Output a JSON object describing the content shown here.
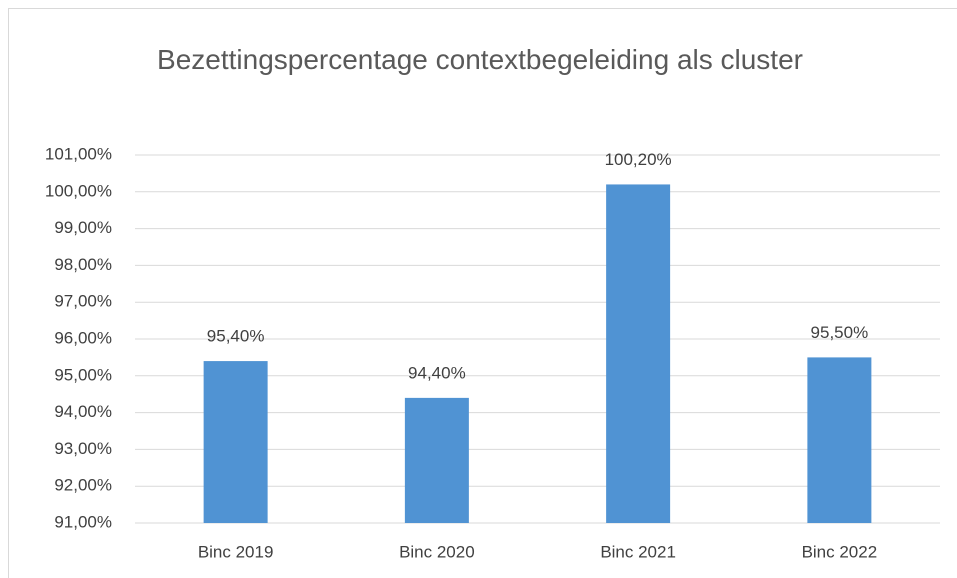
{
  "chart_data": {
    "type": "bar",
    "title": "Bezettingspercentage contextbegeleiding als cluster",
    "categories": [
      "Binc 2019",
      "Binc 2020",
      "Binc 2021",
      "Binc 2022"
    ],
    "values": [
      95.4,
      94.4,
      100.2,
      95.5
    ],
    "value_labels": [
      "95,40%",
      "94,40%",
      "100,20%",
      "95,50%"
    ],
    "color": "#5093d3",
    "ylim": [
      91,
      101
    ],
    "yticks": [
      {
        "value": 91,
        "label": "91,00%"
      },
      {
        "value": 92,
        "label": "92,00%"
      },
      {
        "value": 93,
        "label": "93,00%"
      },
      {
        "value": 94,
        "label": "94,00%"
      },
      {
        "value": 95,
        "label": "95,00%"
      },
      {
        "value": 96,
        "label": "96,00%"
      },
      {
        "value": 97,
        "label": "97,00%"
      },
      {
        "value": 98,
        "label": "98,00%"
      },
      {
        "value": 99,
        "label": "99,00%"
      },
      {
        "value": 100,
        "label": "100,00%"
      },
      {
        "value": 101,
        "label": "101,00%"
      }
    ],
    "grid": true
  }
}
